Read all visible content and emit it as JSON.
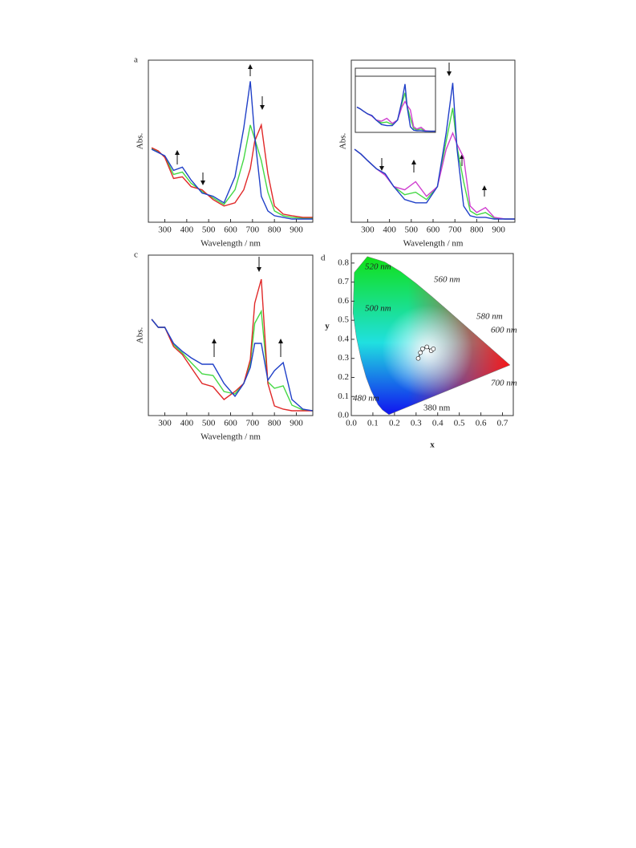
{
  "chart_data": [
    {
      "type": "line",
      "label": "a",
      "xlabel": "Wavelength / nm",
      "ylabel": "Abs.",
      "x": [
        240,
        270,
        300,
        340,
        380,
        420,
        470,
        520,
        570,
        620,
        660,
        690,
        710,
        740,
        770,
        800,
        840,
        880,
        930,
        975
      ],
      "xlim": [
        225,
        975
      ],
      "ylim": [
        0,
        1
      ],
      "xticks": [
        300,
        400,
        500,
        600,
        700,
        800,
        900
      ],
      "series": [
        {
          "color": "#44d844",
          "values": [
            0.455,
            0.435,
            0.405,
            0.295,
            0.31,
            0.24,
            0.19,
            0.15,
            0.11,
            0.2,
            0.39,
            0.6,
            0.515,
            0.38,
            0.185,
            0.07,
            0.04,
            0.03,
            0.025,
            0.025
          ]
        },
        {
          "color": "#e02828",
          "values": [
            0.46,
            0.44,
            0.4,
            0.27,
            0.28,
            0.22,
            0.2,
            0.14,
            0.1,
            0.12,
            0.2,
            0.33,
            0.5,
            0.6,
            0.3,
            0.1,
            0.05,
            0.04,
            0.03,
            0.03
          ]
        },
        {
          "color": "#2040c8",
          "values": [
            0.45,
            0.43,
            0.41,
            0.32,
            0.34,
            0.26,
            0.18,
            0.16,
            0.12,
            0.28,
            0.58,
            0.87,
            0.53,
            0.16,
            0.07,
            0.04,
            0.03,
            0.02,
            0.02,
            0.02
          ]
        }
      ]
    },
    {
      "type": "line",
      "xlabel": "Wavelength / nm",
      "ylabel": "Abs.",
      "x": [
        240,
        270,
        300,
        340,
        380,
        420,
        470,
        520,
        570,
        620,
        660,
        690,
        710,
        740,
        770,
        800,
        840,
        880,
        930,
        975
      ],
      "xlim": [
        225,
        975
      ],
      "ylim": [
        0,
        1
      ],
      "xticks": [
        300,
        400,
        500,
        600,
        700,
        800,
        900
      ],
      "series": [
        {
          "color": "#44d844",
          "values": [
            0.45,
            0.42,
            0.38,
            0.33,
            0.295,
            0.22,
            0.17,
            0.185,
            0.14,
            0.22,
            0.5,
            0.705,
            0.465,
            0.25,
            0.07,
            0.045,
            0.06,
            0.025,
            0.02,
            0.02
          ]
        },
        {
          "color": "#d040d0",
          "values": [
            0.45,
            0.42,
            0.38,
            0.33,
            0.29,
            0.22,
            0.2,
            0.25,
            0.16,
            0.22,
            0.45,
            0.55,
            0.48,
            0.4,
            0.1,
            0.06,
            0.09,
            0.03,
            0.02,
            0.02
          ]
        },
        {
          "color": "#2040c8",
          "values": [
            0.45,
            0.42,
            0.38,
            0.33,
            0.3,
            0.22,
            0.14,
            0.12,
            0.12,
            0.22,
            0.55,
            0.86,
            0.45,
            0.1,
            0.04,
            0.03,
            0.03,
            0.02,
            0.02,
            0.02
          ]
        }
      ]
    },
    {
      "type": "line",
      "label": "c",
      "xlabel": "Wavelength  / nm",
      "ylabel": "Abs.",
      "x": [
        240,
        270,
        300,
        340,
        380,
        420,
        470,
        520,
        570,
        620,
        660,
        690,
        710,
        740,
        770,
        800,
        840,
        880,
        930,
        975
      ],
      "xlim": [
        225,
        975
      ],
      "ylim": [
        0,
        1
      ],
      "xticks": [
        300,
        400,
        500,
        600,
        700,
        800,
        900
      ],
      "series": [
        {
          "color": "#44d844",
          "values": [
            0.6,
            0.55,
            0.55,
            0.44,
            0.39,
            0.33,
            0.26,
            0.25,
            0.15,
            0.135,
            0.2,
            0.325,
            0.575,
            0.65,
            0.21,
            0.17,
            0.185,
            0.065,
            0.035,
            0.03
          ]
        },
        {
          "color": "#e02828",
          "values": [
            0.6,
            0.55,
            0.55,
            0.43,
            0.38,
            0.3,
            0.2,
            0.18,
            0.1,
            0.15,
            0.2,
            0.35,
            0.7,
            0.85,
            0.2,
            0.06,
            0.04,
            0.03,
            0.03,
            0.03
          ]
        },
        {
          "color": "#2040c8",
          "values": [
            0.6,
            0.55,
            0.55,
            0.45,
            0.4,
            0.36,
            0.32,
            0.32,
            0.2,
            0.12,
            0.2,
            0.3,
            0.45,
            0.45,
            0.22,
            0.28,
            0.33,
            0.1,
            0.04,
            0.03
          ]
        }
      ]
    },
    {
      "type": "cie",
      "label": "d",
      "xlabel": "x",
      "ylabel": "y",
      "xlim": [
        0,
        0.75
      ],
      "ylim": [
        0,
        0.85
      ],
      "xticks": [
        {
          "value": 0,
          "label": "0.0"
        },
        0.1,
        0.2,
        0.3,
        0.4,
        0.5,
        0.6,
        0.7
      ],
      "yticks": [
        {
          "value": 0,
          "label": "0.0"
        },
        0.1,
        0.2,
        0.3,
        0.4,
        0.5,
        0.6,
        0.7,
        0.8
      ],
      "locus": {
        "x": [
          0.1741,
          0.144,
          0.1241,
          0.0913,
          0.0687,
          0.0454,
          0.0235,
          0.0082,
          0.0139,
          0.0743,
          0.1547,
          0.2296,
          0.3016,
          0.3731,
          0.4441,
          0.5125,
          0.5752,
          0.627,
          0.6915,
          0.7347
        ],
        "y": [
          0.005,
          0.0297,
          0.0578,
          0.1327,
          0.2007,
          0.295,
          0.4127,
          0.5384,
          0.7502,
          0.8338,
          0.8059,
          0.7543,
          0.6923,
          0.6245,
          0.5547,
          0.4866,
          0.4242,
          0.3725,
          0.3083,
          0.2653
        ]
      },
      "points": {
        "x": [
          0.31,
          0.32,
          0.33,
          0.35,
          0.37,
          0.38
        ],
        "y": [
          0.3,
          0.33,
          0.35,
          0.36,
          0.34,
          0.35
        ]
      },
      "annotations": [
        "520 nm",
        "560 nm",
        "500 nm",
        "580 nm",
        "600 nm",
        "480 nm",
        "700 nm",
        "380 nm"
      ]
    }
  ]
}
